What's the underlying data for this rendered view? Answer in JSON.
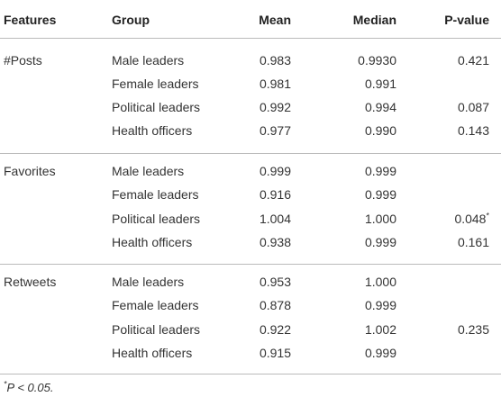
{
  "table": {
    "headers": [
      "Features",
      "Group",
      "Mean",
      "Median",
      "P-value"
    ],
    "sections": [
      {
        "feature": "#Posts",
        "rows": [
          {
            "group": "Male leaders",
            "mean": "0.983",
            "median": "0.9930",
            "p": {
              "text": "0.421"
            }
          },
          {
            "group": "Female leaders",
            "mean": "0.981",
            "median": "0.991",
            "p": null
          },
          {
            "group": "Political leaders",
            "mean": "0.992",
            "median": "0.994",
            "p": {
              "text": "0.087"
            }
          },
          {
            "group": "Health officers",
            "mean": "0.977",
            "median": "0.990",
            "p": {
              "text": "0.143"
            }
          }
        ]
      },
      {
        "feature": "Favorites",
        "rows": [
          {
            "group": "Male leaders",
            "mean": "0.999",
            "median": "0.999",
            "p": null
          },
          {
            "group": "Female leaders",
            "mean": "0.916",
            "median": "0.999",
            "p": null
          },
          {
            "group": "Political leaders",
            "mean": "1.004",
            "median": "1.000",
            "p": {
              "text": "0.048",
              "note": "*"
            }
          },
          {
            "group": "Health officers",
            "mean": "0.938",
            "median": "0.999",
            "p": {
              "text": "0.161"
            }
          }
        ]
      },
      {
        "feature": "Retweets",
        "rows": [
          {
            "group": "Male leaders",
            "mean": "0.953",
            "median": "1.000",
            "p": null
          },
          {
            "group": "Female leaders",
            "mean": "0.878",
            "median": "0.999",
            "p": null
          },
          {
            "group": "Political leaders",
            "mean": "0.922",
            "median": "1.002",
            "p": {
              "text": "0.235"
            }
          },
          {
            "group": "Health officers",
            "mean": "0.915",
            "median": "0.999",
            "p": null
          }
        ]
      }
    ],
    "footnote": {
      "mark": "*",
      "text": "P < 0.05."
    }
  }
}
